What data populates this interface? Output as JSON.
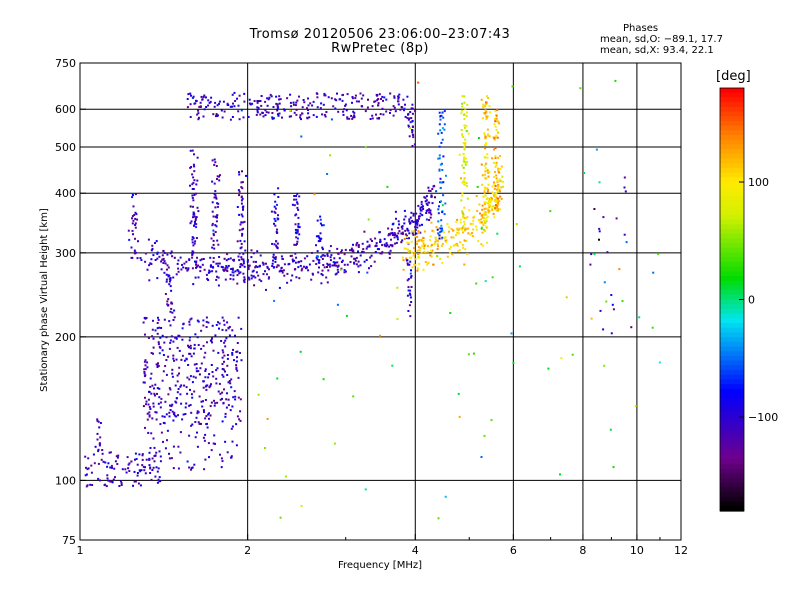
{
  "title": "Tromsø 20120506 23:06:00–23:07:43",
  "subtitle": "RwPretec (8p)",
  "stats": {
    "heading": "Phases",
    "line1": "mean, sd,O: −89.1, 17.7",
    "line2": "mean, sd,X:  93.4, 22.1"
  },
  "colorbar": {
    "unit": "[deg]",
    "min": -180,
    "max": 180,
    "ticks": [
      100,
      0,
      -100
    ],
    "tick_labels": [
      "100",
      "0",
      "−100"
    ]
  },
  "chart_data": {
    "type": "scatter",
    "title": "Tromsø 20120506 23:06:00–23:07:43",
    "subtitle": "RwPretec (8p)",
    "xlabel": "Frequency [MHz]",
    "ylabel": "Stationary phase Virtual Height [km]",
    "xscale": "log",
    "yscale": "log",
    "xlim": [
      1,
      12
    ],
    "ylim": [
      75,
      750
    ],
    "xticks": [
      1,
      2,
      4,
      6,
      8,
      10,
      12
    ],
    "xtick_labels": [
      "1",
      "2",
      "4",
      "6",
      "8",
      "10",
      "12"
    ],
    "yticks": [
      75,
      100,
      200,
      300,
      400,
      500,
      600,
      750
    ],
    "ytick_labels": [
      "75",
      "100",
      "200",
      "300",
      "400",
      "500",
      "600",
      "750"
    ],
    "grid": true,
    "color_variable": "phase [deg]",
    "traces": [
      {
        "kind": "curve",
        "x": [
          1.3,
          1.5,
          1.7,
          1.9,
          2.1,
          2.4,
          2.7,
          3.0,
          3.3,
          3.6,
          3.9,
          4.1,
          4.3
        ],
        "y": [
          295,
          282,
          278,
          276,
          276,
          278,
          282,
          290,
          302,
          318,
          338,
          362,
          392
        ],
        "phase": -110,
        "spread": 0.04,
        "n": 520
      },
      {
        "kind": "curve",
        "x": [
          3.8,
          4.1,
          4.4,
          4.8,
          5.2,
          5.5,
          5.7
        ],
        "y": [
          300,
          305,
          312,
          325,
          345,
          380,
          430
        ],
        "phase": 110,
        "spread": 0.05,
        "n": 260
      },
      {
        "kind": "vertical",
        "x": 4.45,
        "y": [
          320,
          620
        ],
        "phase": -60,
        "n": 60
      },
      {
        "kind": "vertical",
        "x": 4.9,
        "y": [
          330,
          640
        ],
        "phase": 80,
        "n": 70
      },
      {
        "kind": "vertical",
        "x": 5.35,
        "y": [
          340,
          640
        ],
        "phase": 110,
        "n": 90
      },
      {
        "kind": "vertical",
        "x": 5.6,
        "y": [
          360,
          600
        ],
        "phase": 120,
        "n": 60
      },
      {
        "kind": "band",
        "x": [
          1.55,
          3.9
        ],
        "y": [
          570,
          650
        ],
        "phase": -110,
        "n": 280
      },
      {
        "kind": "vertical",
        "x": 1.25,
        "y": [
          290,
          400
        ],
        "phase": -110,
        "n": 30
      },
      {
        "kind": "vertical",
        "x": 1.6,
        "y": [
          290,
          500
        ],
        "phase": -110,
        "n": 60
      },
      {
        "kind": "vertical",
        "x": 1.75,
        "y": [
          280,
          480
        ],
        "phase": -110,
        "n": 50
      },
      {
        "kind": "vertical",
        "x": 1.95,
        "y": [
          280,
          450
        ],
        "phase": -110,
        "n": 50
      },
      {
        "kind": "vertical",
        "x": 2.25,
        "y": [
          280,
          420
        ],
        "phase": -100,
        "n": 40
      },
      {
        "kind": "vertical",
        "x": 2.45,
        "y": [
          280,
          400
        ],
        "phase": -100,
        "n": 40
      },
      {
        "kind": "vertical",
        "x": 2.7,
        "y": [
          285,
          360
        ],
        "phase": -90,
        "n": 30
      },
      {
        "kind": "vertical",
        "x": 3.9,
        "y": [
          220,
          300
        ],
        "phase": -110,
        "n": 25
      },
      {
        "kind": "vertical",
        "x": 3.95,
        "y": [
          500,
          620
        ],
        "phase": -110,
        "n": 25
      },
      {
        "kind": "vertical",
        "x": 1.45,
        "y": [
          220,
          270
        ],
        "phase": -110,
        "n": 25
      },
      {
        "kind": "blob",
        "x": [
          1.3,
          1.95
        ],
        "y": [
          130,
          220
        ],
        "phase": -110,
        "n": 380
      },
      {
        "kind": "blob",
        "x": [
          1.3,
          1.95
        ],
        "y": [
          105,
          130
        ],
        "phase": -110,
        "n": 60
      },
      {
        "kind": "blob",
        "x": [
          1.02,
          1.4
        ],
        "y": [
          97,
          115
        ],
        "phase": -110,
        "n": 110
      },
      {
        "kind": "vertical",
        "x": 1.08,
        "y": [
          115,
          135
        ],
        "phase": -110,
        "n": 15
      },
      {
        "kind": "sparse",
        "x": [
          2.0,
          11.0
        ],
        "y": [
          80,
          700
        ],
        "phase": 40,
        "n": 80
      },
      {
        "kind": "sparse",
        "x": [
          8.2,
          9.8
        ],
        "y": [
          200,
          560
        ],
        "phase": -110,
        "n": 25
      }
    ]
  }
}
